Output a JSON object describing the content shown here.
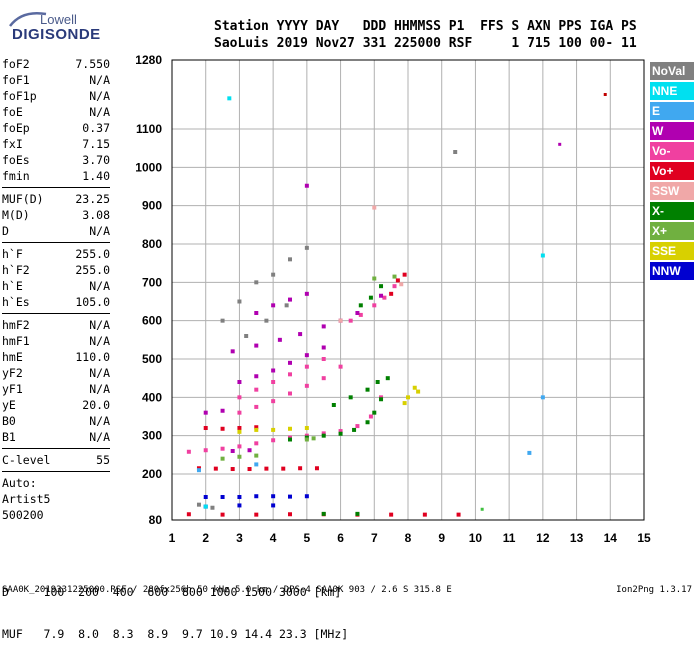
{
  "logo": {
    "line1": "Lowell",
    "line2": "DIGISONDE"
  },
  "header": {
    "line1": "Station YYYY DAY   DDD HHMMSS P1  FFS S AXN PPS IGA PS",
    "line2": "SaoLuis 2019 Nov27 331 225000 RSF     1 715 100 00- 11"
  },
  "params": {
    "group1": [
      {
        "label": "foF2",
        "value": "7.550"
      },
      {
        "label": "foF1",
        "value": "N/A"
      },
      {
        "label": "foF1p",
        "value": "N/A"
      },
      {
        "label": "foE",
        "value": "N/A"
      },
      {
        "label": "foEp",
        "value": "0.37"
      },
      {
        "label": "fxI",
        "value": "7.15"
      },
      {
        "label": "foEs",
        "value": "3.70"
      },
      {
        "label": "fmin",
        "value": "1.40"
      }
    ],
    "group2": [
      {
        "label": "MUF(D)",
        "value": "23.25"
      },
      {
        "label": "M(D)",
        "value": "3.08"
      },
      {
        "label": "D",
        "value": "N/A"
      }
    ],
    "group3": [
      {
        "label": "h`F",
        "value": "255.0"
      },
      {
        "label": "h`F2",
        "value": "255.0"
      },
      {
        "label": "h`E",
        "value": "N/A"
      },
      {
        "label": "h`Es",
        "value": "105.0"
      }
    ],
    "group4": [
      {
        "label": "hmF2",
        "value": "N/A"
      },
      {
        "label": "hmF1",
        "value": "N/A"
      },
      {
        "label": "hmE",
        "value": "110.0"
      },
      {
        "label": "yF2",
        "value": "N/A"
      },
      {
        "label": "yF1",
        "value": "N/A"
      },
      {
        "label": "yE",
        "value": "20.0"
      },
      {
        "label": "B0",
        "value": "N/A"
      },
      {
        "label": "B1",
        "value": "N/A"
      }
    ],
    "clevel": {
      "label": "C-level",
      "value": "55"
    },
    "auto": [
      "Auto:",
      "Artist5",
      "500200"
    ]
  },
  "legend": [
    {
      "label": "NoVal",
      "color": "#808080"
    },
    {
      "label": "NNE",
      "color": "#00e0f0"
    },
    {
      "label": "E",
      "color": "#40a8f0"
    },
    {
      "label": "W",
      "color": "#b000b0"
    },
    {
      "label": "Vo-",
      "color": "#f040a0"
    },
    {
      "label": "Vo+",
      "color": "#e00020"
    },
    {
      "label": "SSW",
      "color": "#f0a8a8"
    },
    {
      "label": "X-",
      "color": "#008000"
    },
    {
      "label": "X+",
      "color": "#70b040"
    },
    {
      "label": "SSE",
      "color": "#d8d000"
    },
    {
      "label": "NNW",
      "color": "#0000d0"
    }
  ],
  "dmuf": {
    "d_line": "D     100  200  400  600  800 1000 1500 3000 [km]",
    "muf_line": "MUF   7.9  8.0  8.3  8.9  9.7 10.9 14.4 23.3 [MHz]"
  },
  "footer": {
    "text": "SAA0K_2019331225000.RSF / 280fx256h 50 kHz 5.0 km / DPS-4 SAA0K 903 / 2.6 S 315.8 E",
    "version": "Ion2Png 1.3.17"
  },
  "chart_data": {
    "type": "scatter",
    "xlim": [
      1,
      15
    ],
    "ylim": [
      80,
      1280
    ],
    "x_ticks": [
      1,
      2,
      3,
      4,
      5,
      6,
      7,
      8,
      9,
      10,
      11,
      12,
      13,
      14,
      15
    ],
    "y_ticks": [
      80,
      200,
      300,
      400,
      500,
      600,
      700,
      800,
      900,
      1000,
      1100,
      1280
    ],
    "grid": true,
    "legend_position": "right",
    "series": [
      {
        "name": "Vo-",
        "color": "#f040a0",
        "points": [
          [
            1.5,
            258
          ],
          [
            2.0,
            262
          ],
          [
            2.5,
            266
          ],
          [
            3.0,
            272
          ],
          [
            3.5,
            280
          ],
          [
            4.0,
            288
          ],
          [
            4.5,
            295
          ],
          [
            5.0,
            300
          ],
          [
            5.5,
            306
          ],
          [
            6.0,
            312
          ],
          [
            6.5,
            325
          ],
          [
            6.9,
            350
          ],
          [
            7.2,
            400
          ],
          [
            3.0,
            360
          ],
          [
            3.5,
            375
          ],
          [
            4.0,
            390
          ],
          [
            4.5,
            410
          ],
          [
            5.0,
            430
          ],
          [
            5.5,
            450
          ],
          [
            6.0,
            480
          ],
          [
            3.0,
            400
          ],
          [
            3.5,
            420
          ],
          [
            4.0,
            440
          ],
          [
            4.5,
            460
          ],
          [
            5.0,
            480
          ],
          [
            5.5,
            500
          ],
          [
            6.3,
            600
          ],
          [
            6.6,
            615
          ],
          [
            7.0,
            640
          ],
          [
            7.3,
            660
          ],
          [
            7.6,
            690
          ]
        ]
      },
      {
        "name": "Vo+",
        "color": "#e00020",
        "points": [
          [
            1.8,
            215
          ],
          [
            2.3,
            214
          ],
          [
            2.8,
            213
          ],
          [
            3.3,
            213
          ],
          [
            3.8,
            214
          ],
          [
            4.3,
            214
          ],
          [
            4.8,
            215
          ],
          [
            5.3,
            215
          ],
          [
            2.0,
            320
          ],
          [
            2.5,
            318
          ],
          [
            3.0,
            320
          ],
          [
            3.5,
            322
          ],
          [
            1.5,
            95
          ],
          [
            2.5,
            94
          ],
          [
            3.5,
            94
          ],
          [
            4.5,
            95
          ],
          [
            5.5,
            95
          ],
          [
            6.5,
            94
          ],
          [
            7.5,
            94
          ],
          [
            8.5,
            94
          ],
          [
            9.5,
            94
          ],
          [
            7.5,
            670
          ],
          [
            7.7,
            705
          ],
          [
            7.9,
            720
          ]
        ]
      },
      {
        "name": "W",
        "color": "#b000b0",
        "points": [
          [
            2.8,
            520
          ],
          [
            3.5,
            535
          ],
          [
            4.2,
            550
          ],
          [
            4.8,
            565
          ],
          [
            5.5,
            585
          ],
          [
            6.0,
            600
          ],
          [
            3.0,
            440
          ],
          [
            3.5,
            455
          ],
          [
            4.0,
            470
          ],
          [
            4.5,
            490
          ],
          [
            5.0,
            510
          ],
          [
            5.5,
            530
          ],
          [
            3.5,
            620
          ],
          [
            4.0,
            640
          ],
          [
            4.5,
            655
          ],
          [
            5.0,
            670
          ],
          [
            6.5,
            620
          ],
          [
            7.2,
            665
          ],
          [
            2.0,
            360
          ],
          [
            2.5,
            365
          ],
          [
            5.0,
            952
          ],
          [
            2.8,
            260
          ],
          [
            3.3,
            262
          ]
        ]
      },
      {
        "name": "X-",
        "color": "#008000",
        "points": [
          [
            4.5,
            290
          ],
          [
            5.0,
            295
          ],
          [
            5.5,
            300
          ],
          [
            6.0,
            305
          ],
          [
            6.4,
            315
          ],
          [
            6.8,
            335
          ],
          [
            7.0,
            360
          ],
          [
            7.2,
            395
          ],
          [
            7.4,
            450
          ],
          [
            6.6,
            640
          ],
          [
            6.9,
            660
          ],
          [
            7.2,
            690
          ],
          [
            5.8,
            380
          ],
          [
            6.3,
            400
          ],
          [
            6.8,
            420
          ],
          [
            7.1,
            440
          ],
          [
            5.5,
            96
          ],
          [
            6.5,
            96
          ]
        ]
      },
      {
        "name": "X+",
        "color": "#70b040",
        "points": [
          [
            2.5,
            240
          ],
          [
            3.0,
            245
          ],
          [
            3.5,
            248
          ],
          [
            5.0,
            290
          ],
          [
            5.2,
            293
          ],
          [
            7.0,
            710
          ],
          [
            7.6,
            715
          ]
        ]
      },
      {
        "name": "SSE",
        "color": "#d8d000",
        "points": [
          [
            3.0,
            310
          ],
          [
            3.5,
            315
          ],
          [
            4.0,
            315
          ],
          [
            4.5,
            318
          ],
          [
            5.0,
            320
          ],
          [
            7.9,
            385
          ],
          [
            8.0,
            400
          ],
          [
            8.2,
            425
          ],
          [
            8.3,
            415
          ]
        ]
      },
      {
        "name": "NNW",
        "color": "#0000d0",
        "points": [
          [
            2.0,
            140
          ],
          [
            2.5,
            140
          ],
          [
            3.0,
            140
          ],
          [
            3.5,
            142
          ],
          [
            4.0,
            142
          ],
          [
            4.5,
            141
          ],
          [
            5.0,
            142
          ],
          [
            2.0,
            115
          ],
          [
            3.0,
            118
          ],
          [
            4.0,
            118
          ]
        ]
      },
      {
        "name": "NNE",
        "color": "#00e0f0",
        "points": [
          [
            2.7,
            1180
          ],
          [
            12.0,
            770
          ],
          [
            2.0,
            115
          ]
        ]
      },
      {
        "name": "E",
        "color": "#40a8f0",
        "points": [
          [
            12.0,
            400
          ],
          [
            11.6,
            255
          ],
          [
            1.8,
            210
          ],
          [
            3.5,
            225
          ]
        ]
      },
      {
        "name": "SSW",
        "color": "#f0a8a8",
        "points": [
          [
            7.0,
            895
          ],
          [
            6.0,
            600
          ],
          [
            7.8,
            695
          ]
        ]
      },
      {
        "name": "NoVal",
        "color": "#808080",
        "points": [
          [
            2.5,
            600
          ],
          [
            3.0,
            650
          ],
          [
            3.5,
            700
          ],
          [
            4.0,
            720
          ],
          [
            4.5,
            760
          ],
          [
            5.0,
            790
          ],
          [
            3.2,
            560
          ],
          [
            3.8,
            600
          ],
          [
            4.4,
            640
          ],
          [
            9.4,
            1040
          ],
          [
            1.8,
            120
          ],
          [
            2.2,
            112
          ]
        ]
      }
    ],
    "isolated_points": [
      {
        "x": 13.85,
        "y": 1190,
        "color": "#c00000"
      },
      {
        "x": 12.5,
        "y": 1060,
        "color": "#b000b0"
      },
      {
        "x": 10.2,
        "y": 108,
        "color": "#40c040"
      }
    ]
  }
}
